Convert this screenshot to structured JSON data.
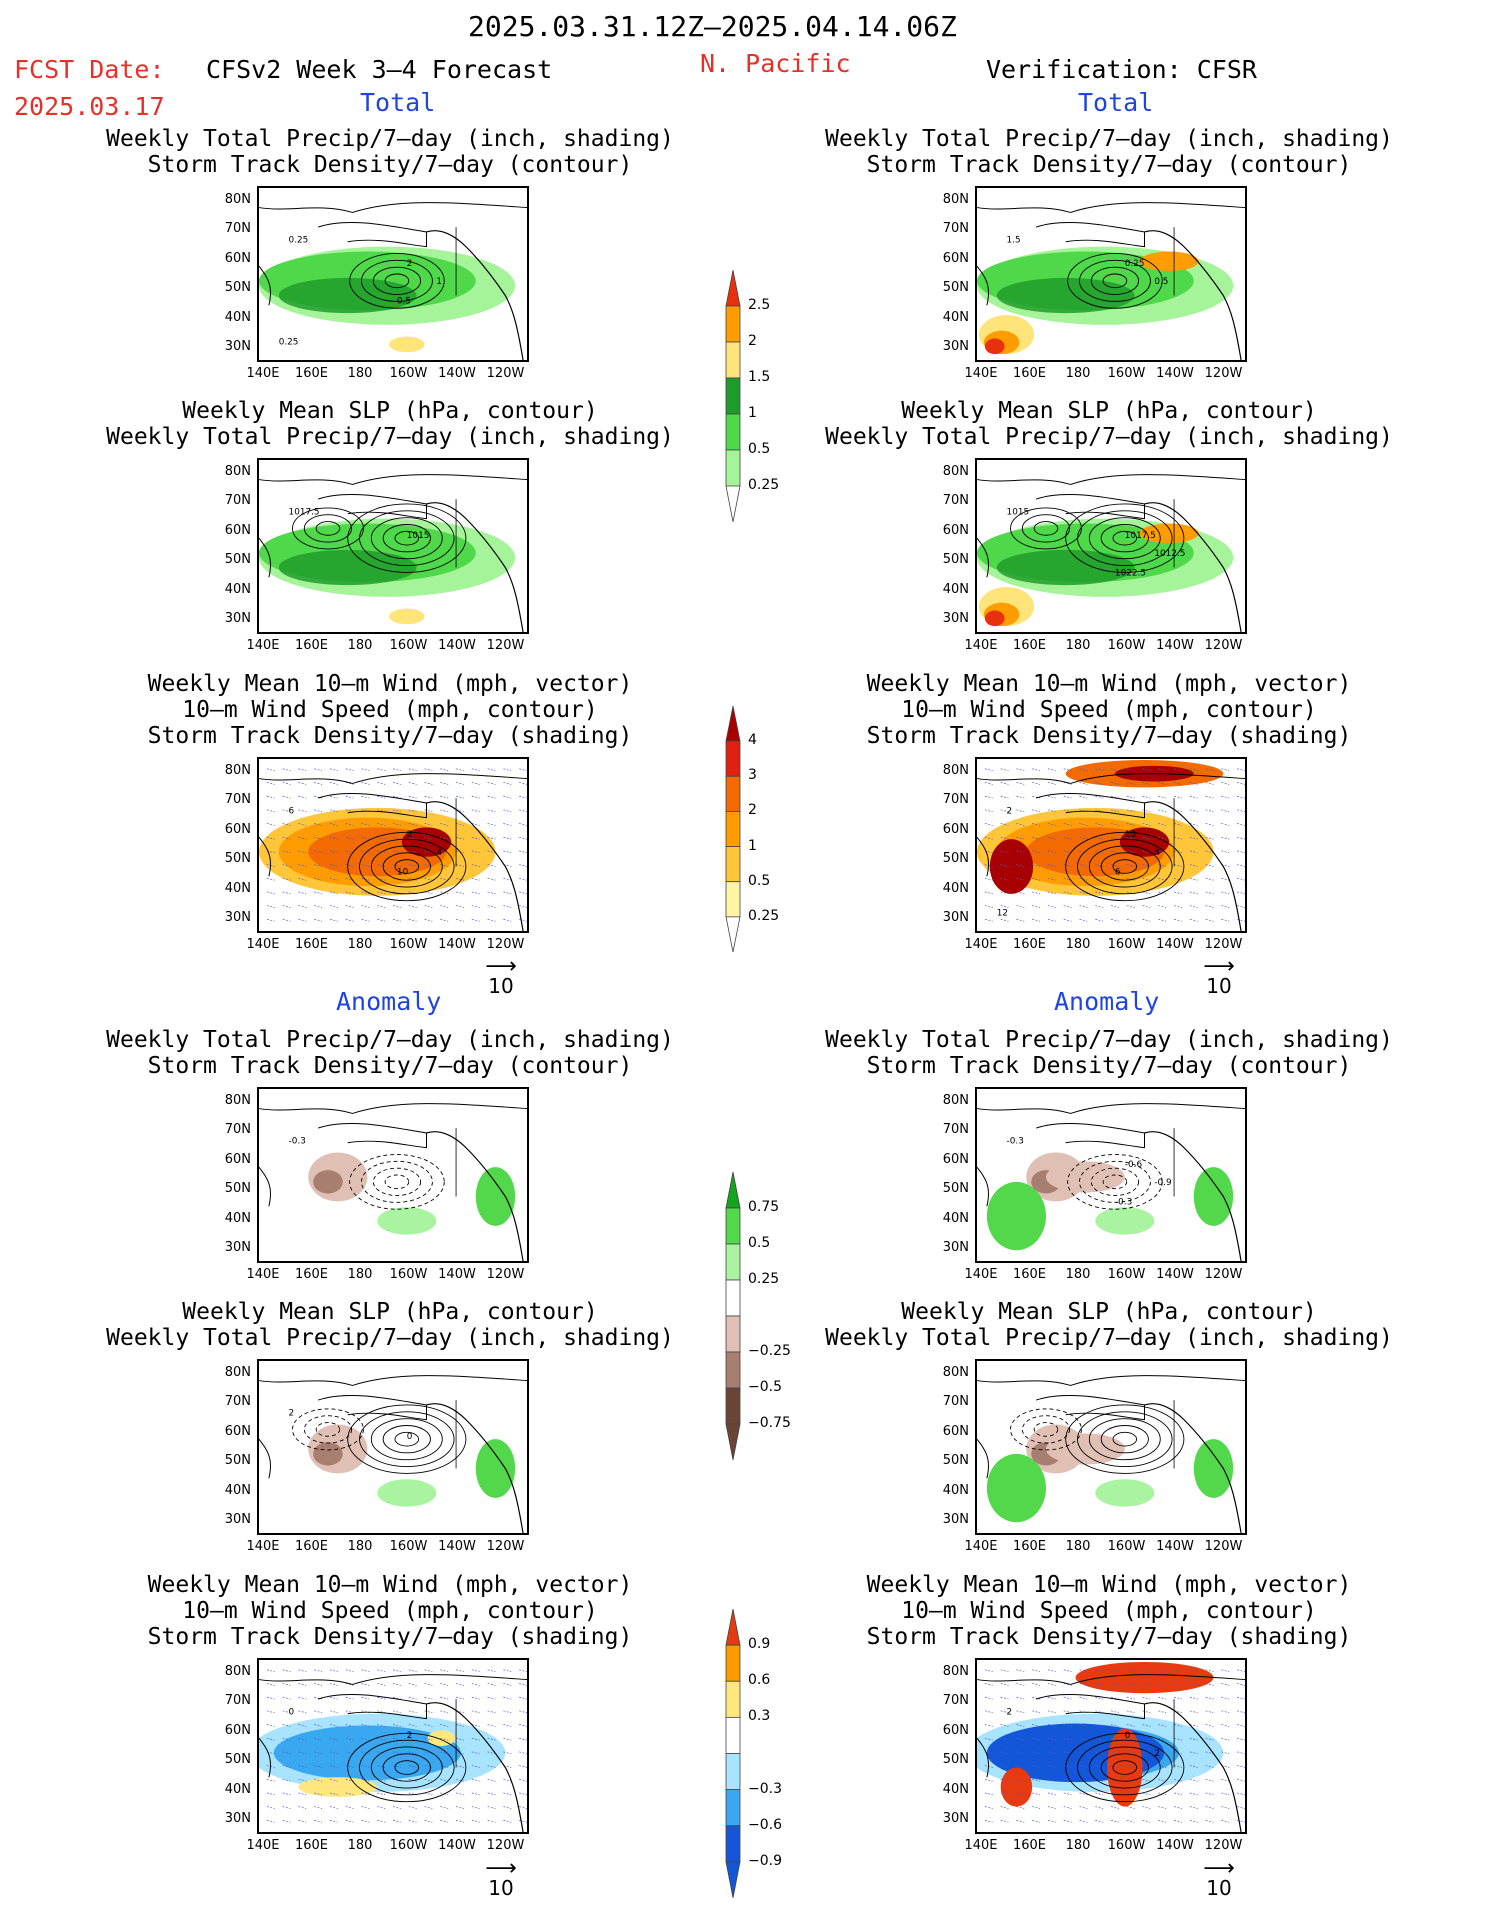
{
  "header": {
    "date_range": "2025.03.31.12Z–2025.04.14.06Z",
    "fcst_label": "FCST Date:",
    "fcst_date": "2025.03.17",
    "model_title": "CFSv2 Week 3–4 Forecast",
    "region": "N. Pacific",
    "verification": "Verification: CFSR"
  },
  "sections": {
    "total": "Total",
    "anomaly": "Anomaly"
  },
  "panel_titles": {
    "precip_storm": [
      "Weekly Total Precip/7–day (inch, shading)",
      "Storm Track Density/7–day (contour)"
    ],
    "slp_precip": [
      "Weekly Mean SLP (hPa, contour)",
      "Weekly Total Precip/7–day (inch, shading)"
    ],
    "wind_storm": [
      "Weekly Mean 10–m Wind (mph, vector)",
      "10–m Wind Speed (mph, contour)",
      "Storm Track Density/7–day (shading)"
    ]
  },
  "axes": {
    "lat_labels": [
      "80N",
      "70N",
      "60N",
      "50N",
      "40N",
      "30N"
    ],
    "lon_labels": [
      "140E",
      "160E",
      "180",
      "160W",
      "140W",
      "120W"
    ]
  },
  "contour_labels": {
    "fc_total_precip": [
      "0.25",
      "2",
      "1",
      "0.5",
      "0.25"
    ],
    "ob_total_precip": [
      "1.5",
      "0.25",
      "0.5"
    ],
    "fc_total_slp": [
      "1017.5",
      "1015"
    ],
    "ob_total_slp": [
      "1015",
      "1017.5",
      "1012.5",
      "1022.5"
    ],
    "fc_total_wind": [
      "6",
      "2",
      "4",
      "10"
    ],
    "ob_total_wind": [
      "2",
      "10",
      "4",
      "6",
      "12"
    ],
    "fc_anom_precip": [
      "-0.3"
    ],
    "ob_anom_precip": [
      "-0.3",
      "-0.6",
      "-0.9",
      "-0.3"
    ],
    "fc_anom_slp": [
      "2",
      "0"
    ],
    "ob_anom_slp": [],
    "fc_anom_wind": [
      "0",
      "2"
    ],
    "ob_anom_wind": [
      "2",
      "0",
      "2"
    ]
  },
  "colorbars": {
    "total_precip": {
      "labels": [
        "2.5",
        "2",
        "1.5",
        "1",
        "0.5",
        "0.25"
      ],
      "colors": [
        "#e8300c",
        "#ff9d00",
        "#ffe47a",
        "#1e9c2a",
        "#4fd84a",
        "#a6f49a"
      ]
    },
    "total_storm": {
      "labels": [
        "4",
        "3",
        "2",
        "1",
        "0.5",
        "0.25"
      ],
      "colors": [
        "#a80000",
        "#e02010",
        "#f26a00",
        "#ff9d00",
        "#ffc63a",
        "#fff5a5"
      ]
    },
    "anom_precip": {
      "labels": [
        "0.75",
        "0.5",
        "0.25",
        "−0.25",
        "−0.5",
        "−0.75"
      ],
      "colors": [
        "#14a51f",
        "#52d84a",
        "#a9f3a1",
        "#ffffff",
        "#e0c0b5",
        "#a87e70",
        "#6b4436"
      ]
    },
    "anom_storm": {
      "labels": [
        "0.9",
        "0.6",
        "0.3",
        "−0.3",
        "−0.6",
        "−0.9"
      ],
      "colors": [
        "#e83a10",
        "#ff9a00",
        "#ffe67d",
        "#ffffff",
        "#a8e3ff",
        "#3aa8f0",
        "#1456d8"
      ]
    }
  },
  "vector_ref": "10",
  "colors": {
    "red_text": "#e8302a",
    "blue_text": "#1f45e0"
  }
}
